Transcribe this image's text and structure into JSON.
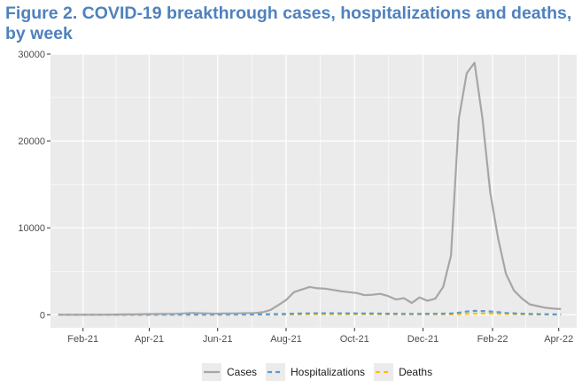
{
  "title": "Figure 2. COVID-19 breakthrough cases, hospitalizations and deaths, by week",
  "colors": {
    "title": "#4f81bd",
    "panel": "#ebebeb",
    "grid": "#ffffff",
    "cases": "#a6a6a6",
    "hospitalizations": "#5b9bd5",
    "deaths": "#ffc000"
  },
  "chart_data": {
    "type": "line",
    "title": "Figure 2. COVID-19 breakthrough cases, hospitalizations and deaths, by week",
    "xlabel": "",
    "ylabel": "",
    "x_axis": "date",
    "xlim": [
      "2021-01-03",
      "2022-04-17"
    ],
    "ylim": [
      -1500,
      30000
    ],
    "y_ticks": [
      0,
      10000,
      20000,
      30000
    ],
    "y_tick_labels": [
      "0",
      "10000",
      "20000",
      "30000"
    ],
    "x_ticks": [
      "2021-02-01",
      "2021-04-01",
      "2021-06-01",
      "2021-08-01",
      "2021-10-01",
      "2021-12-01",
      "2022-02-01",
      "2022-04-01"
    ],
    "x_tick_labels": [
      "Feb-21",
      "Apr-21",
      "Jun-21",
      "Aug-21",
      "Oct-21",
      "Dec-21",
      "Feb-22",
      "Apr-22"
    ],
    "grid": true,
    "legend_position": "bottom",
    "series": [
      {
        "name": "Cases",
        "color": "#a6a6a6",
        "style": "solid",
        "x": [
          "2021-01-10",
          "2021-01-17",
          "2021-01-24",
          "2021-01-31",
          "2021-02-07",
          "2021-02-14",
          "2021-02-21",
          "2021-02-28",
          "2021-03-07",
          "2021-03-14",
          "2021-03-21",
          "2021-03-28",
          "2021-04-04",
          "2021-04-11",
          "2021-04-18",
          "2021-04-25",
          "2021-05-02",
          "2021-05-09",
          "2021-05-16",
          "2021-05-23",
          "2021-05-30",
          "2021-06-06",
          "2021-06-13",
          "2021-06-20",
          "2021-06-27",
          "2021-07-04",
          "2021-07-11",
          "2021-07-18",
          "2021-07-25",
          "2021-08-01",
          "2021-08-08",
          "2021-08-15",
          "2021-08-22",
          "2021-08-29",
          "2021-09-05",
          "2021-09-12",
          "2021-09-19",
          "2021-09-26",
          "2021-10-03",
          "2021-10-10",
          "2021-10-17",
          "2021-10-24",
          "2021-10-31",
          "2021-11-07",
          "2021-11-14",
          "2021-11-21",
          "2021-11-28",
          "2021-12-05",
          "2021-12-12",
          "2021-12-19",
          "2021-12-26",
          "2022-01-02",
          "2022-01-09",
          "2022-01-16",
          "2022-01-23",
          "2022-01-30",
          "2022-02-06",
          "2022-02-13",
          "2022-02-20",
          "2022-02-27",
          "2022-03-06",
          "2022-03-13",
          "2022-03-20",
          "2022-03-27",
          "2022-04-03"
        ],
        "y": [
          0,
          0,
          0,
          0,
          0,
          0,
          10,
          20,
          30,
          40,
          50,
          70,
          80,
          90,
          100,
          110,
          150,
          200,
          170,
          150,
          120,
          140,
          150,
          160,
          180,
          200,
          280,
          550,
          1100,
          1700,
          2600,
          2900,
          3200,
          3050,
          3000,
          2850,
          2700,
          2600,
          2500,
          2250,
          2300,
          2400,
          2150,
          1750,
          1900,
          1350,
          2000,
          1600,
          1850,
          3200,
          6800,
          22600,
          27800,
          29000,
          22600,
          14000,
          8800,
          4700,
          2800,
          1900,
          1200,
          1000,
          800,
          700,
          650
        ]
      },
      {
        "name": "Hospitalizations",
        "color": "#5b9bd5",
        "style": "dashed",
        "x": [
          "2021-01-10",
          "2021-02-07",
          "2021-03-07",
          "2021-04-04",
          "2021-05-02",
          "2021-05-30",
          "2021-06-27",
          "2021-07-25",
          "2021-08-08",
          "2021-08-22",
          "2021-09-05",
          "2021-09-19",
          "2021-10-03",
          "2021-10-17",
          "2021-10-31",
          "2021-11-14",
          "2021-11-28",
          "2021-12-12",
          "2021-12-26",
          "2022-01-02",
          "2022-01-09",
          "2022-01-16",
          "2022-01-23",
          "2022-01-30",
          "2022-02-06",
          "2022-02-13",
          "2022-02-27",
          "2022-03-13",
          "2022-03-27",
          "2022-04-03"
        ],
        "y": [
          0,
          0,
          0,
          10,
          20,
          20,
          30,
          70,
          120,
          160,
          170,
          160,
          150,
          140,
          120,
          100,
          100,
          110,
          140,
          230,
          380,
          450,
          430,
          380,
          300,
          200,
          120,
          70,
          40,
          30
        ]
      },
      {
        "name": "Deaths",
        "color": "#ffc000",
        "style": "dashed",
        "x": [
          "2021-01-10",
          "2021-02-07",
          "2021-03-07",
          "2021-04-04",
          "2021-05-02",
          "2021-05-30",
          "2021-06-27",
          "2021-07-25",
          "2021-08-08",
          "2021-08-22",
          "2021-09-05",
          "2021-09-19",
          "2021-10-03",
          "2021-10-17",
          "2021-10-31",
          "2021-11-14",
          "2021-11-28",
          "2021-12-12",
          "2021-12-26",
          "2022-01-02",
          "2022-01-09",
          "2022-01-16",
          "2022-01-23",
          "2022-01-30",
          "2022-02-06",
          "2022-02-13",
          "2022-02-27",
          "2022-03-13",
          "2022-03-27",
          "2022-04-03"
        ],
        "y": [
          0,
          0,
          0,
          0,
          10,
          10,
          10,
          20,
          40,
          60,
          70,
          70,
          60,
          55,
          50,
          45,
          45,
          45,
          50,
          70,
          100,
          130,
          140,
          130,
          110,
          90,
          60,
          40,
          25,
          20
        ]
      }
    ]
  }
}
